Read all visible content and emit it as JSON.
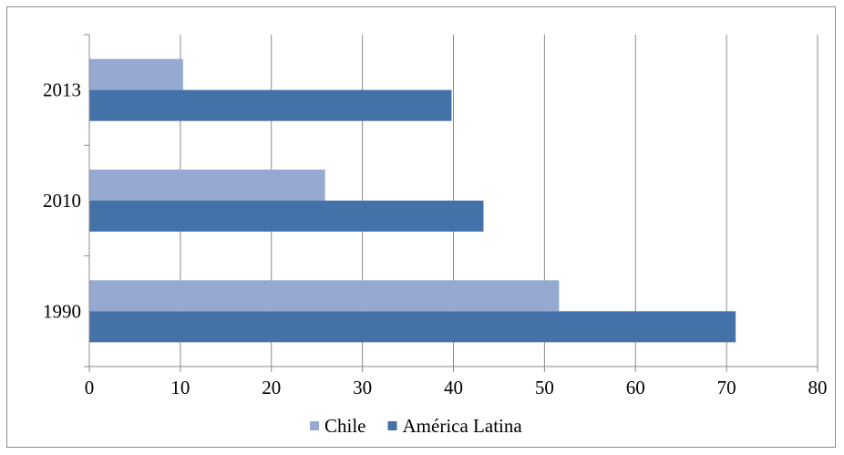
{
  "chart_data": {
    "type": "bar",
    "orientation": "horizontal",
    "categories": [
      "1990",
      "2010",
      "2013"
    ],
    "series": [
      {
        "name": "Chile",
        "values": [
          51.6,
          25.9,
          10.3
        ],
        "color": "#95a9d1"
      },
      {
        "name": "América Latina",
        "values": [
          71.0,
          43.3,
          39.8
        ],
        "color": "#4471a7"
      }
    ],
    "xlim": [
      0,
      80
    ],
    "xticks": [
      "0",
      "10",
      "20",
      "30",
      "40",
      "50",
      "60",
      "70",
      "80"
    ],
    "grid": "vertical",
    "legend_position": "bottom"
  }
}
